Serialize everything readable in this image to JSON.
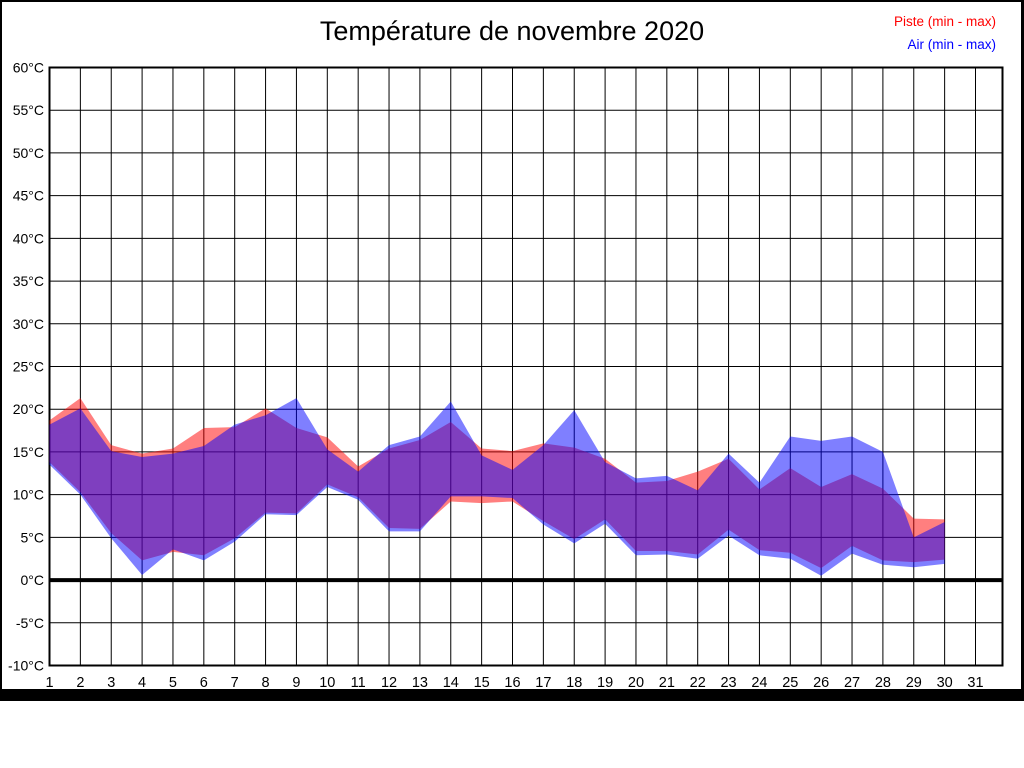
{
  "title": "Température de novembre 2020",
  "legend": {
    "position": "top-right",
    "items": [
      {
        "name": "piste",
        "label": "Piste (min - max)",
        "color": "#ff0000"
      },
      {
        "name": "air",
        "label": "Air (min - max)",
        "color": "#0000ff"
      }
    ]
  },
  "chart_data": {
    "type": "area",
    "title": "Température de novembre 2020",
    "xlabel": "",
    "ylabel": "",
    "xlim": [
      1,
      31
    ],
    "ylim": [
      -10,
      60
    ],
    "grid": true,
    "y_tick_step": 5,
    "y_tick_labels": [
      "60°C",
      "55°C",
      "50°C",
      "45°C",
      "40°C",
      "35°C",
      "30°C",
      "25°C",
      "20°C",
      "15°C",
      "10°C",
      "5°C",
      "0°C",
      "-5°C",
      "-10°C"
    ],
    "y_tick_values": [
      60,
      55,
      50,
      45,
      40,
      35,
      30,
      25,
      20,
      15,
      10,
      5,
      0,
      -5,
      -10
    ],
    "x_tick_labels": [
      "1",
      "2",
      "3",
      "4",
      "5",
      "6",
      "7",
      "8",
      "9",
      "10",
      "11",
      "12",
      "13",
      "14",
      "15",
      "16",
      "17",
      "18",
      "19",
      "20",
      "21",
      "22",
      "23",
      "24",
      "25",
      "26",
      "27",
      "28",
      "29",
      "30",
      "31"
    ],
    "x": [
      1,
      2,
      3,
      4,
      5,
      6,
      7,
      8,
      9,
      10,
      11,
      12,
      13,
      14,
      15,
      16,
      17,
      18,
      19,
      20,
      21,
      22,
      23,
      24,
      25,
      26,
      27,
      28,
      29,
      30
    ],
    "zero_line": 0,
    "series": [
      {
        "name": "Piste (min - max)",
        "fill": "rgba(255,0,0,0.5)",
        "max": [
          18.7,
          21.3,
          15.8,
          14.8,
          15.4,
          17.8,
          17.9,
          20.1,
          17.8,
          16.7,
          13.3,
          15.4,
          16.4,
          18.5,
          15.4,
          15.1,
          16.0,
          15.5,
          14.2,
          11.4,
          11.6,
          12.7,
          14.2,
          10.6,
          13.1,
          10.9,
          12.4,
          10.7,
          7.2,
          7.1
        ],
        "min": [
          13.8,
          10.3,
          5.5,
          2.3,
          3.3,
          2.9,
          4.9,
          7.9,
          7.8,
          11.2,
          9.7,
          6.1,
          6.0,
          9.2,
          9.0,
          9.2,
          6.9,
          4.8,
          7.1,
          3.4,
          3.4,
          3.0,
          5.9,
          3.5,
          3.2,
          1.4,
          4.0,
          2.3,
          2.1,
          2.4
        ]
      },
      {
        "name": "Air (min - max)",
        "fill": "rgba(0,0,255,0.5)",
        "max": [
          18.2,
          20.1,
          15.1,
          14.4,
          14.8,
          15.7,
          18.2,
          19.3,
          21.3,
          15.3,
          12.7,
          15.8,
          16.8,
          20.9,
          14.6,
          12.9,
          15.8,
          19.9,
          13.8,
          11.9,
          12.2,
          10.5,
          14.8,
          11.4,
          16.8,
          16.3,
          16.8,
          15.0,
          5.0,
          6.8
        ],
        "min": [
          13.5,
          10.0,
          4.9,
          0.6,
          3.6,
          2.3,
          4.5,
          7.7,
          7.6,
          10.9,
          9.4,
          5.7,
          5.7,
          9.8,
          9.8,
          9.6,
          6.5,
          4.3,
          6.6,
          2.9,
          3.0,
          2.5,
          5.2,
          2.9,
          2.5,
          0.5,
          3.1,
          1.8,
          1.5,
          1.9
        ]
      }
    ]
  }
}
